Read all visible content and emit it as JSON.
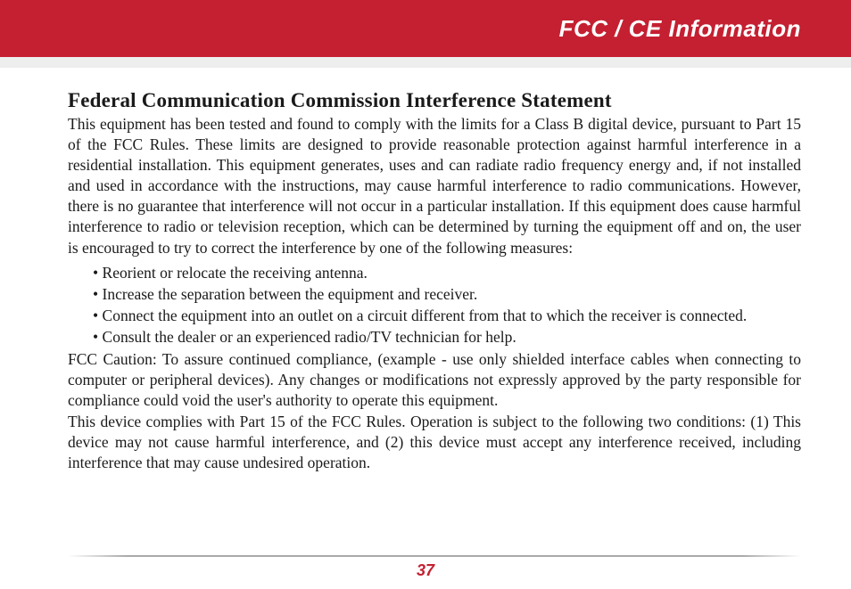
{
  "header": {
    "title": "FCC / CE Information",
    "band_color": "#c42031",
    "text_color": "#ffffff"
  },
  "body": {
    "heading": "Federal Communication Commission Interference Statement",
    "para1": "This equipment has been tested and found to comply with the limits for a Class B digital device, pursuant to Part 15 of the FCC Rules. These limits are designed to provide reasonable protection against harmful interference in a residential installation. This equipment generates, uses and can radiate radio frequency energy and, if not installed and used in accordance with the instructions, may cause harmful interference to radio communications. However, there is no guarantee that interference will not occur in a particular installation. If this equipment does cause harmful interference to radio or television reception, which can be determined by turning the equipment off and on, the user is encouraged to try to correct the interference by one of the following measures:",
    "bullets": [
      "Reorient or relocate the receiving antenna.",
      "Increase the separation between the equipment and receiver.",
      "Connect the equipment into an outlet on a circuit different from that to which the receiver is connected.",
      "Consult the dealer or an experienced radio/TV technician for help."
    ],
    "para2": "FCC Caution: To assure continued compliance, (example - use only shielded interface cables when connecting to computer or peripheral devices). Any changes or modifications not expressly approved by the party responsible for compliance could void the user's authority to operate this equipment.",
    "para3": "This device complies with Part 15 of the FCC Rules. Operation is subject to the following two conditions: (1) This device may not cause harmful interference, and (2) this device must accept any interference received, including interference that may cause undesired operation."
  },
  "footer": {
    "page_number": "37",
    "rule_color": "#a0a0a0",
    "number_color": "#c42031"
  }
}
